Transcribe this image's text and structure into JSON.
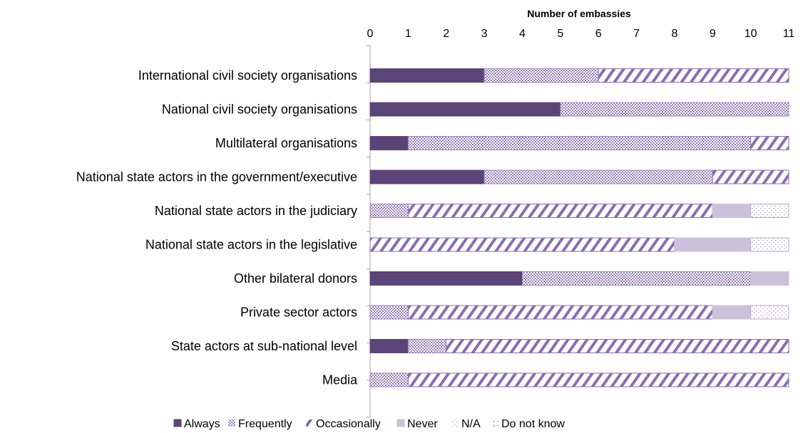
{
  "chart_data": {
    "type": "bar",
    "orientation": "horizontal",
    "stacked": true,
    "xlabel": "Number of embassies",
    "xlabel_position": "top",
    "xlim": [
      0,
      11
    ],
    "xticks": [
      0,
      1,
      2,
      3,
      4,
      5,
      6,
      7,
      8,
      9,
      10,
      11
    ],
    "grid": false,
    "legend_position": "bottom",
    "categories": [
      "International civil society organisations",
      "National civil society organisations",
      "Multilateral organisations",
      "National state actors in the government/executive",
      "National state actors in the judiciary",
      "National state actors in the legislative",
      "Other bilateral donors",
      "Private sector actors",
      "State actors at sub-national level",
      "Media"
    ],
    "series": [
      {
        "name": "Always",
        "color": "#5b4477",
        "pattern": "solid",
        "values": [
          3,
          5,
          1,
          3,
          0,
          0,
          4,
          0,
          1,
          0
        ]
      },
      {
        "name": "Frequently",
        "color": "#9b83bc",
        "pattern": "dots",
        "values": [
          3,
          6,
          9,
          6,
          1,
          0,
          6,
          1,
          1,
          1
        ]
      },
      {
        "name": "Occasionally",
        "color": "#8a6db1",
        "pattern": "diagonal",
        "values": [
          5,
          0,
          1,
          2,
          8,
          8,
          0,
          8,
          9,
          10
        ]
      },
      {
        "name": "Never",
        "color": "#ccc1dd",
        "pattern": "solid",
        "values": [
          0,
          0,
          0,
          0,
          1,
          2,
          1,
          1,
          0,
          0
        ]
      },
      {
        "name": "N/A",
        "color": "#b9a9d1",
        "pattern": "sparse-dots",
        "values": [
          0,
          0,
          0,
          0,
          1,
          1,
          0,
          1,
          0,
          0
        ]
      },
      {
        "name": "Do not know",
        "color": "#b9a9d1",
        "pattern": "sparse-dashes",
        "values": [
          0,
          0,
          0,
          0,
          0,
          0,
          0,
          0,
          0,
          0
        ]
      }
    ]
  }
}
